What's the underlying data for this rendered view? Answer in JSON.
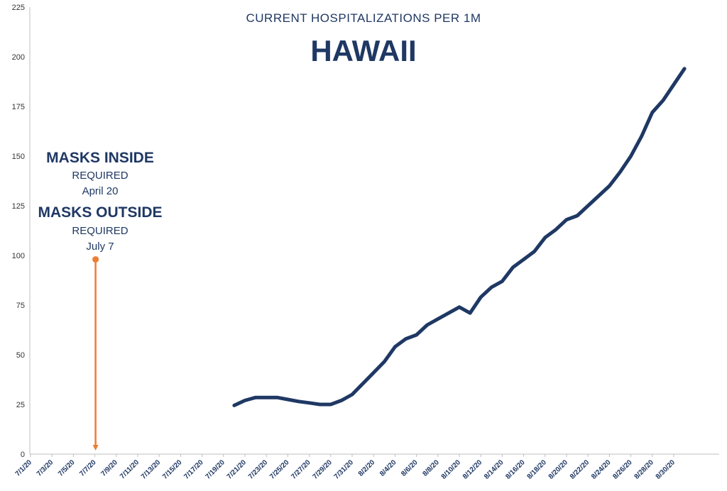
{
  "chart_data": {
    "type": "line",
    "title": "CURRENT HOSPITALIZATIONS PER 1M",
    "subtitle": "HAWAII",
    "ylim": [
      0,
      225
    ],
    "yticks": [
      0,
      25,
      50,
      75,
      100,
      125,
      150,
      175,
      200,
      225
    ],
    "grid": false,
    "x_tick_labels": [
      "7/1/20",
      "7/3/20",
      "7/5/20",
      "7/7/20",
      "7/9/20",
      "7/11/20",
      "7/13/20",
      "7/15/20",
      "7/17/20",
      "7/19/20",
      "7/21/20",
      "7/23/20",
      "7/25/20",
      "7/27/20",
      "7/29/20",
      "7/31/20",
      "8/2/20",
      "8/4/20",
      "8/6/20",
      "8/8/20",
      "8/10/20",
      "8/12/20",
      "8/14/20",
      "8/16/20",
      "8/18/20",
      "8/20/20",
      "8/22/20",
      "8/24/20",
      "8/26/20",
      "8/28/20",
      "8/30/20"
    ],
    "x": [
      "7/20/20",
      "7/21/20",
      "7/22/20",
      "7/23/20",
      "7/24/20",
      "7/25/20",
      "7/26/20",
      "7/27/20",
      "7/28/20",
      "7/29/20",
      "7/30/20",
      "7/31/20",
      "8/1/20",
      "8/2/20",
      "8/3/20",
      "8/4/20",
      "8/5/20",
      "8/6/20",
      "8/7/20",
      "8/8/20",
      "8/9/20",
      "8/10/20",
      "8/11/20",
      "8/12/20",
      "8/13/20",
      "8/14/20",
      "8/15/20",
      "8/16/20",
      "8/17/20",
      "8/18/20",
      "8/19/20",
      "8/20/20",
      "8/21/20",
      "8/22/20",
      "8/23/20",
      "8/24/20",
      "8/25/20",
      "8/26/20",
      "8/27/20",
      "8/28/20",
      "8/29/20",
      "8/30/20",
      "8/31/20"
    ],
    "series": [
      {
        "color": "#1f3864",
        "values": [
          24.5,
          27,
          28.5,
          28.5,
          28.5,
          27.5,
          26.5,
          25.8,
          25,
          25,
          27,
          30,
          35.5,
          41,
          46.5,
          54,
          58,
          60,
          65,
          68,
          71,
          74,
          71,
          79,
          84,
          87,
          94,
          98,
          102,
          109,
          113,
          118,
          120,
          125,
          130,
          135,
          142,
          150,
          160,
          172,
          178,
          186,
          194
        ]
      }
    ],
    "annotations": {
      "masks_inside": "MASKS INSIDE",
      "inside_required": "REQUIRED",
      "inside_date": "April 20",
      "masks_outside": "MASKS OUTSIDE",
      "outside_required": "REQUIRED",
      "outside_date": "July 7",
      "marker_x": "7/7/20",
      "marker_y": 98,
      "marker_color": "#ed7d31"
    }
  }
}
